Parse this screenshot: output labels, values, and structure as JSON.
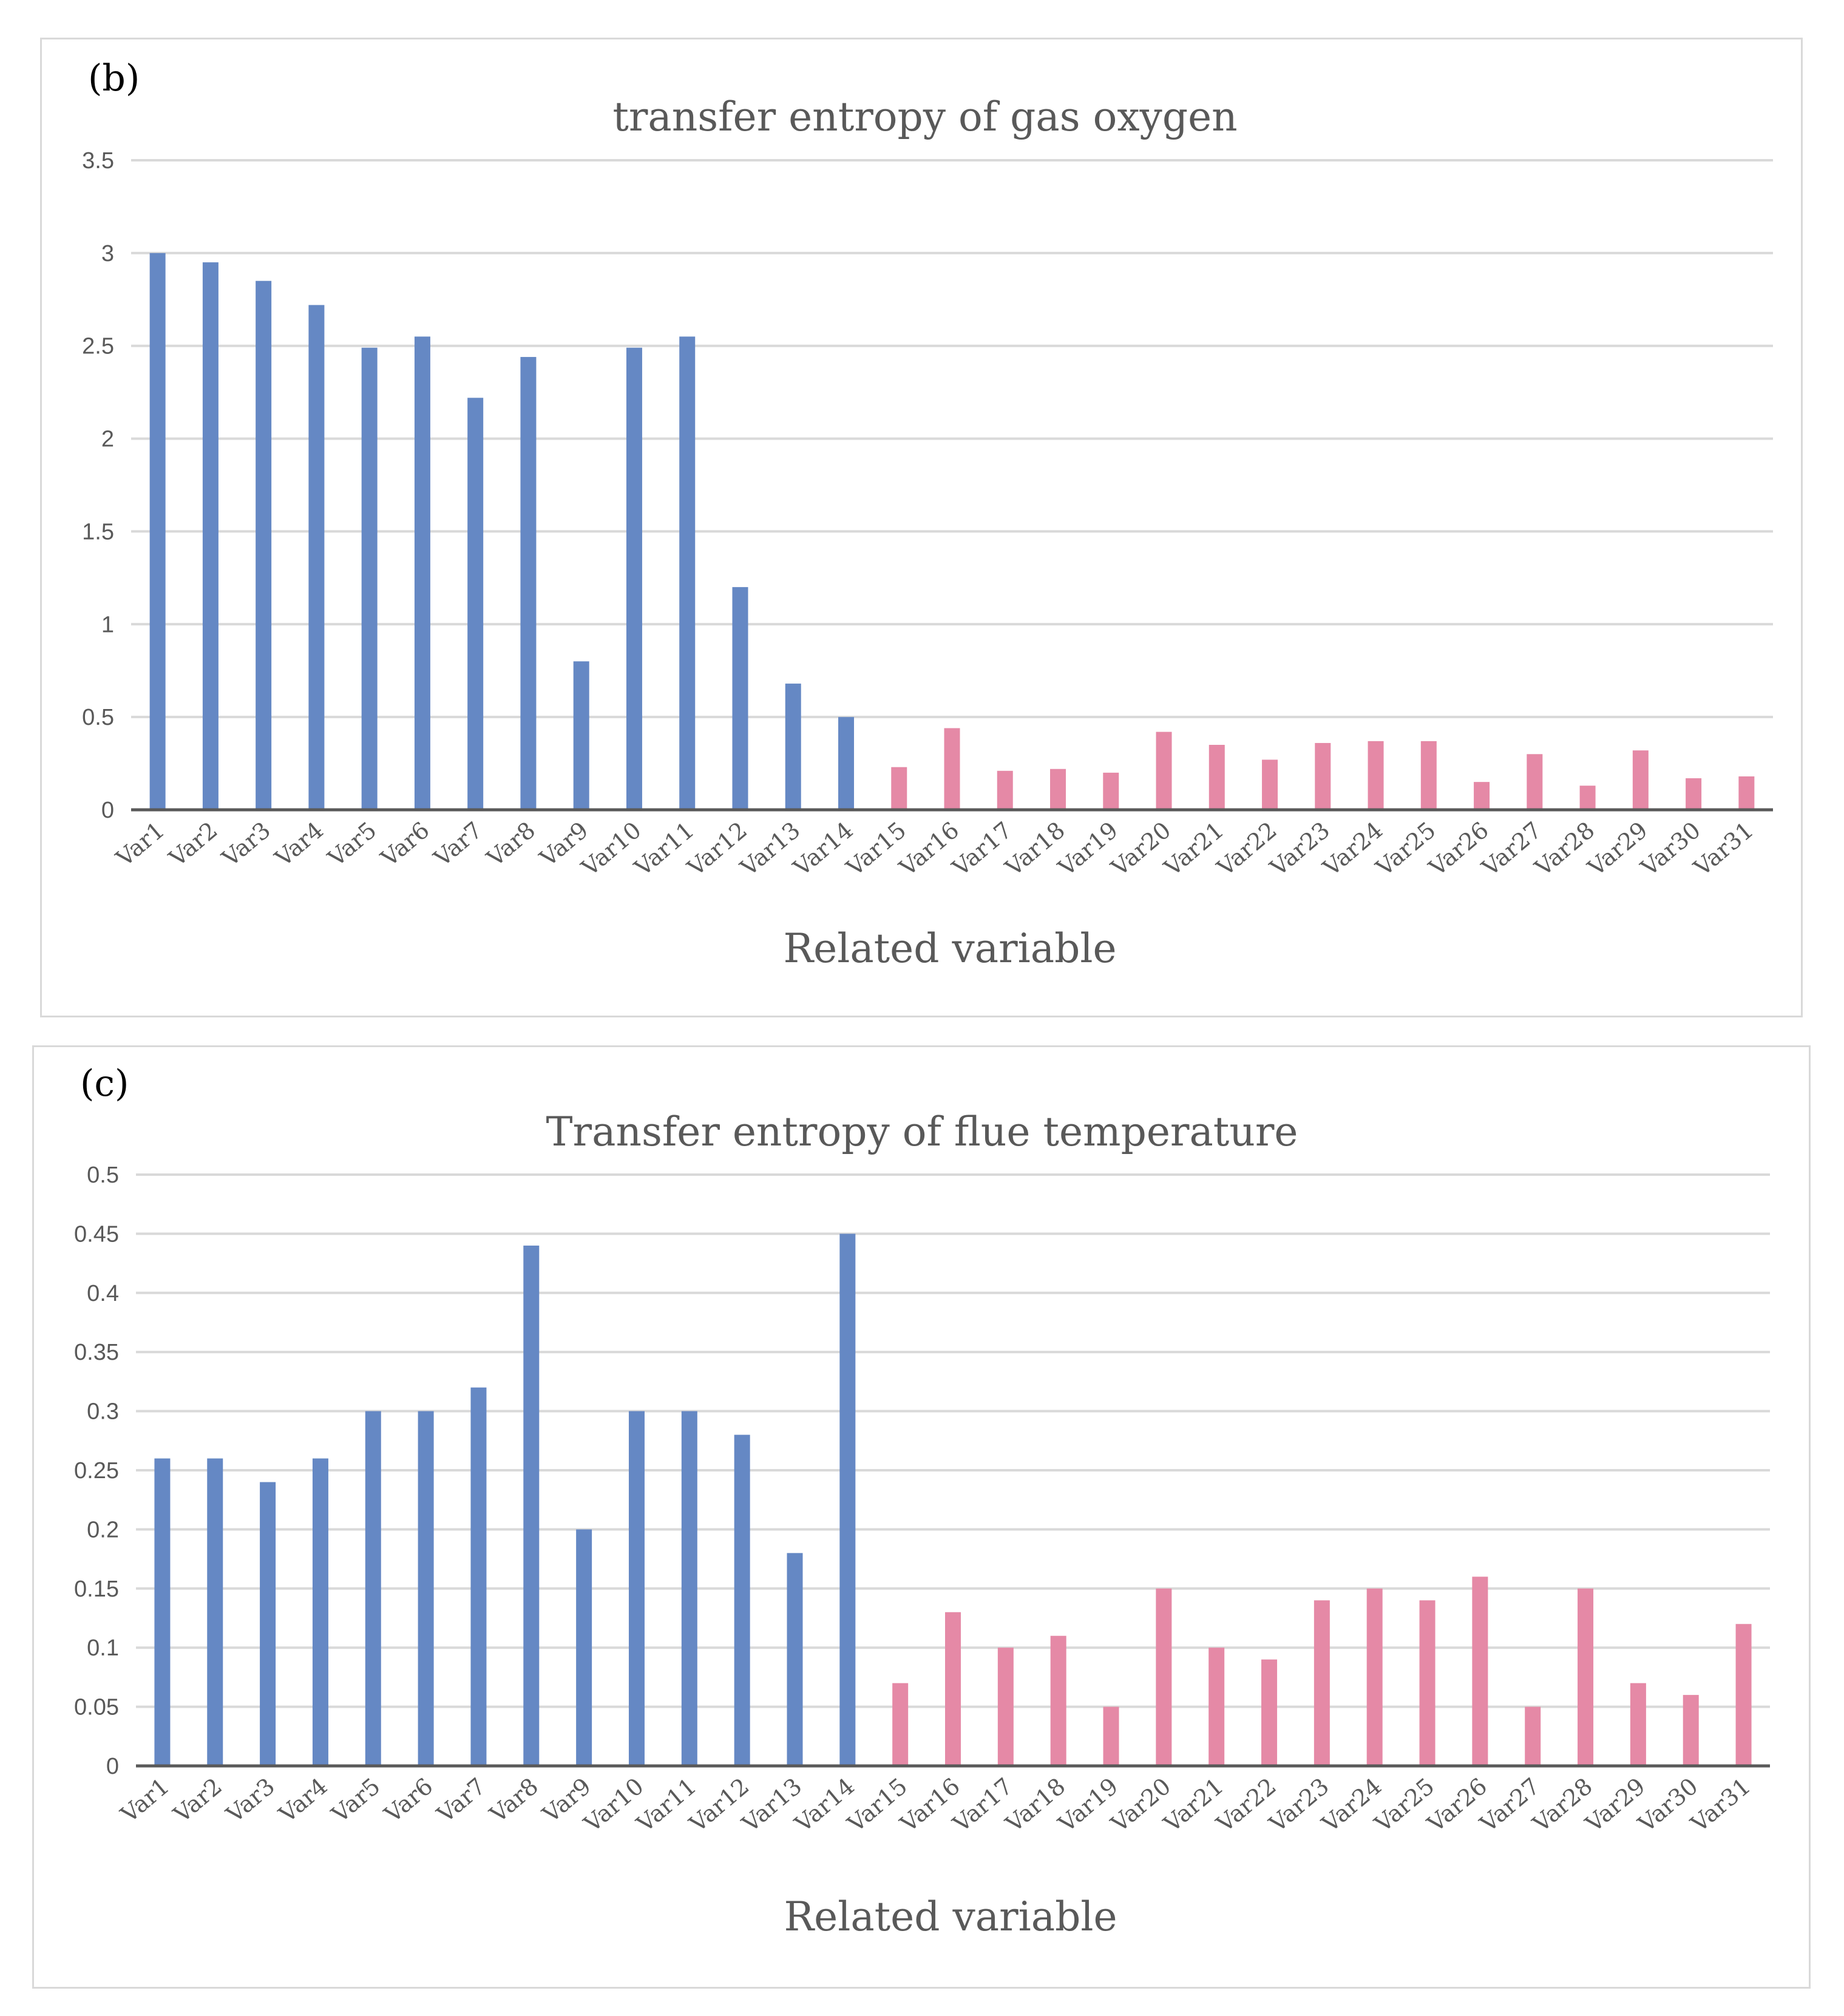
{
  "charts": [
    {
      "panel_label": "(b)",
      "chart_data": {
        "type": "bar",
        "title": "transfer entropy of gas oxygen",
        "xlabel": "Related variable",
        "ylabel": "",
        "ylim": [
          0,
          3.5
        ],
        "yticks": [
          "0",
          "0.5",
          "1",
          "1.5",
          "2",
          "2.5",
          "3",
          "3.5"
        ],
        "grid": true,
        "categories": [
          "Var1",
          "Var2",
          "Var3",
          "Var4",
          "Var5",
          "Var6",
          "Var7",
          "Var8",
          "Var9",
          "Var10",
          "Var11",
          "Var12",
          "Var13",
          "Var14",
          "Var15",
          "Var16",
          "Var17",
          "Var18",
          "Var19",
          "Var20",
          "Var21",
          "Var22",
          "Var23",
          "Var24",
          "Var25",
          "Var26",
          "Var27",
          "Var28",
          "Var29",
          "Var30",
          "Var31"
        ],
        "values": [
          3.0,
          2.95,
          2.85,
          2.72,
          2.49,
          2.55,
          2.22,
          2.44,
          0.8,
          2.49,
          2.55,
          1.2,
          0.68,
          0.5,
          0.23,
          0.44,
          0.21,
          0.22,
          0.2,
          0.42,
          0.35,
          0.27,
          0.36,
          0.37,
          0.37,
          0.15,
          0.3,
          0.13,
          0.32,
          0.17,
          0.18
        ],
        "colors": {
          "group1": "#6588c4",
          "group2": "#e589a6",
          "group1_count": 14
        }
      }
    },
    {
      "panel_label": "(c)",
      "chart_data": {
        "type": "bar",
        "title": "Transfer entropy of flue temperature",
        "xlabel": "Related variable",
        "ylabel": "",
        "ylim": [
          0,
          0.5
        ],
        "yticks": [
          "0",
          "0.05",
          "0.1",
          "0.15",
          "0.2",
          "0.25",
          "0.3",
          "0.35",
          "0.4",
          "0.45",
          "0.5"
        ],
        "grid": true,
        "categories": [
          "Var1",
          "Var2",
          "Var3",
          "Var4",
          "Var5",
          "Var6",
          "Var7",
          "Var8",
          "Var9",
          "Var10",
          "Var11",
          "Var12",
          "Var13",
          "Var14",
          "Var15",
          "Var16",
          "Var17",
          "Var18",
          "Var19",
          "Var20",
          "Var21",
          "Var22",
          "Var23",
          "Var24",
          "Var25",
          "Var26",
          "Var27",
          "Var28",
          "Var29",
          "Var30",
          "Var31"
        ],
        "values": [
          0.26,
          0.26,
          0.24,
          0.26,
          0.3,
          0.3,
          0.32,
          0.44,
          0.2,
          0.3,
          0.3,
          0.28,
          0.18,
          0.45,
          0.07,
          0.13,
          0.1,
          0.11,
          0.05,
          0.15,
          0.1,
          0.09,
          0.14,
          0.15,
          0.14,
          0.16,
          0.05,
          0.15,
          0.07,
          0.06,
          0.12
        ],
        "colors": {
          "group1": "#6588c4",
          "group2": "#e589a6",
          "group1_count": 14
        }
      }
    }
  ]
}
